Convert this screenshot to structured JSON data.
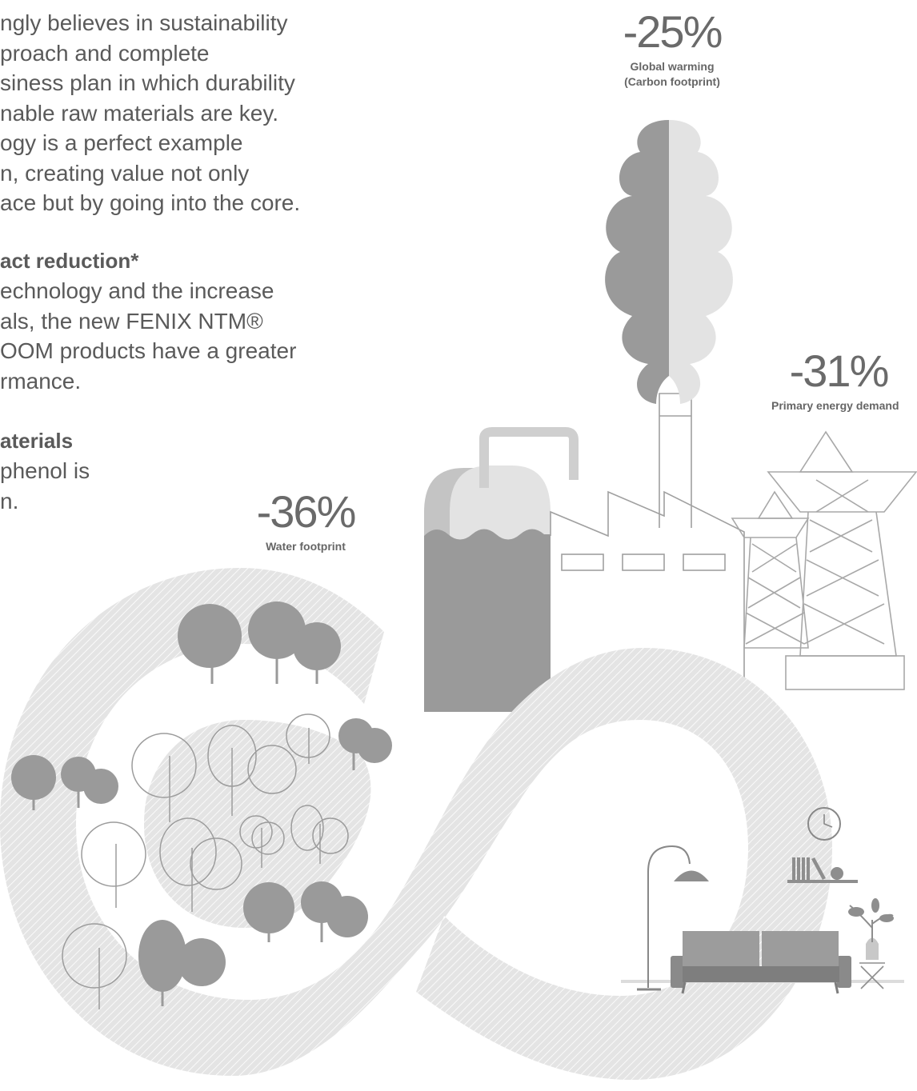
{
  "intro_lines": [
    "ngly believes in sustainability",
    "proach and complete",
    "siness plan in which durability",
    "nable raw materials are key.",
    "ogy is a perfect example",
    "n, creating value not only",
    "ace but by going into the core."
  ],
  "impact": {
    "heading": "act reduction*",
    "lines": [
      "echnology and the increase",
      "als, the new FENIX NTM®",
      "OOM products have a greater",
      "rmance."
    ]
  },
  "materials": {
    "heading": "aterials",
    "lines": [
      "phenol is",
      "n."
    ]
  },
  "stats": {
    "global_warming": {
      "value": "-25%",
      "label_1": "Global warming",
      "label_2": "(Carbon footprint)"
    },
    "energy": {
      "value": "-31%",
      "label": "Primary energy demand"
    },
    "water": {
      "value": "-36%",
      "label": "Water footprint"
    }
  },
  "colors": {
    "dark_grey": "#9a9a9a",
    "mid_grey": "#c4c4c4",
    "light_grey": "#e3e3e3",
    "line_grey": "#a0a0a0"
  }
}
